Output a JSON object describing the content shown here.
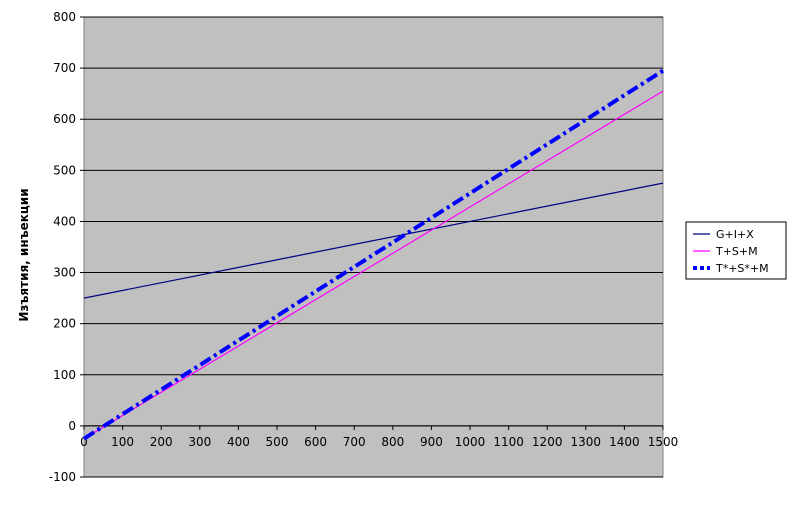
{
  "chart_data": {
    "type": "line",
    "title": "",
    "xlabel": "",
    "ylabel": "Изъятия, инъекции",
    "xlim": [
      0,
      1500
    ],
    "ylim": [
      -100,
      800
    ],
    "x_ticks": [
      0,
      100,
      200,
      300,
      400,
      500,
      600,
      700,
      800,
      900,
      1000,
      1100,
      1200,
      1300,
      1400,
      1500
    ],
    "y_ticks": [
      -100,
      0,
      100,
      200,
      300,
      400,
      500,
      600,
      700,
      800
    ],
    "grid": "horizontal",
    "plot_background": "#c0c0c0",
    "legend_position": "right",
    "series": [
      {
        "name": "G+I+X",
        "color": "#000080",
        "style": "solid",
        "points": [
          [
            0,
            250
          ],
          [
            1500,
            475
          ]
        ]
      },
      {
        "name": "T+S+M",
        "color": "#ff00ff",
        "style": "solid",
        "points": [
          [
            0,
            -25
          ],
          [
            1500,
            655
          ]
        ]
      },
      {
        "name": "T*+S*+M",
        "color": "#0000ff",
        "style": "dashdot-thick",
        "points": [
          [
            0,
            -25
          ],
          [
            1500,
            695
          ]
        ]
      }
    ]
  }
}
